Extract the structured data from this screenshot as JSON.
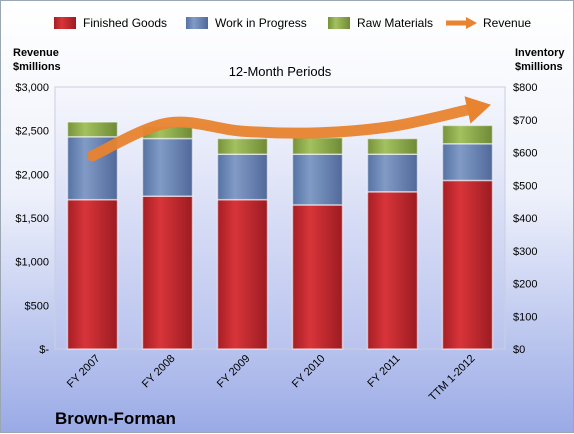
{
  "chart_data": {
    "type": "bar",
    "stacked": true,
    "title": "12-Month Periods",
    "company": "Brown-Forman",
    "categories": [
      "FY 2007",
      "FY 2008",
      "FY 2009",
      "FY 2010",
      "FY 2011",
      "TTM 1-2012"
    ],
    "series": [
      {
        "name": "Finished Goods",
        "axis": "left",
        "color": "#c0272d",
        "values": [
          1710,
          1750,
          1710,
          1650,
          1800,
          1930
        ]
      },
      {
        "name": "Work in Progress",
        "axis": "left",
        "color": "#6b87b5",
        "values": [
          720,
          660,
          520,
          580,
          430,
          420
        ]
      },
      {
        "name": "Raw Materials",
        "axis": "left",
        "color": "#8daa4a",
        "values": [
          170,
          140,
          180,
          190,
          180,
          210
        ]
      },
      {
        "name": "Revenue",
        "type": "line",
        "axis": "right",
        "color": "#e8832f",
        "values": [
          590,
          690,
          665,
          660,
          680,
          730
        ]
      }
    ],
    "y_left": {
      "label_line1": "Revenue",
      "label_line2": "$millions",
      "range": [
        0,
        3000
      ],
      "ticks": [
        0,
        500,
        1000,
        1500,
        2000,
        2500,
        3000
      ],
      "tick_labels": [
        "$-",
        "$500",
        "$1,000",
        "$1,500",
        "$2,000",
        "$2,500",
        "$3,000"
      ]
    },
    "y_right": {
      "label_line1": "Inventory",
      "label_line2": "$millions",
      "range": [
        0,
        800
      ],
      "ticks": [
        0,
        100,
        200,
        300,
        400,
        500,
        600,
        700,
        800
      ],
      "tick_labels": [
        "$0",
        "$100",
        "$200",
        "$300",
        "$400",
        "$500",
        "$600",
        "$700",
        "$800"
      ]
    },
    "legend_position": "top",
    "grid": false
  }
}
